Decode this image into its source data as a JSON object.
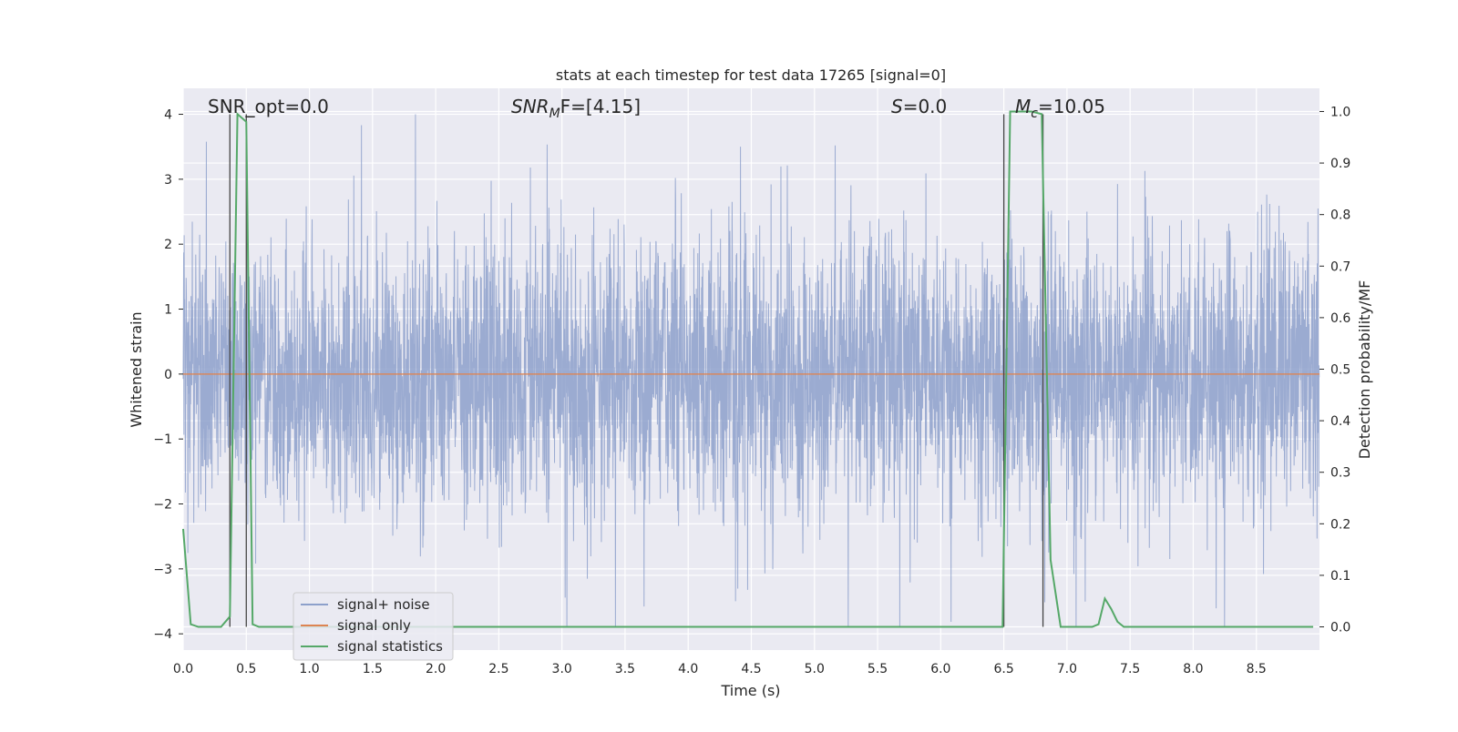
{
  "chart_data": {
    "type": "line",
    "title": "stats at each timestep for test data 17265 [signal=0]",
    "xlabel": "Time (s)",
    "ylabel_left": "Whitened strain",
    "ylabel_right": "Detection probability/MF",
    "xlim": [
      0.0,
      9.0
    ],
    "ylim_left": [
      -4.25,
      4.4
    ],
    "ylim_right": [
      -0.045,
      1.045
    ],
    "x_ticks": [
      "0.0",
      "0.5",
      "1.0",
      "1.5",
      "2.0",
      "2.5",
      "3.0",
      "3.5",
      "4.0",
      "4.5",
      "5.0",
      "5.5",
      "6.0",
      "6.5",
      "7.0",
      "7.5",
      "8.0",
      "8.5"
    ],
    "y_ticks_left": [
      "−4",
      "−3",
      "−2",
      "−1",
      "0",
      "1",
      "2",
      "3",
      "4"
    ],
    "y_ticks_right": [
      "0.0",
      "0.1",
      "0.2",
      "0.3",
      "0.4",
      "0.5",
      "0.6",
      "0.7",
      "0.8",
      "0.9",
      "1.0"
    ],
    "grid": true,
    "legend_position": "lower-left",
    "annotations": {
      "snr_opt": "SNR_opt=0.0",
      "snr_mf_italic": "SNR",
      "snr_mf_sub": "M",
      "snr_mf_rest": "F=[4.15]",
      "s_italic": "S",
      "s_rest": "=0.0",
      "mc_italic": "M",
      "mc_sub": "c",
      "mc_rest": "=10.05"
    },
    "vertical_markers": [
      0.37,
      0.5,
      6.5,
      6.81
    ],
    "series": [
      {
        "name": "signal+ noise",
        "axis": "left",
        "color": "#8da0cb",
        "sample_rate": 512,
        "description_range": [
          -3.9,
          4.0
        ]
      },
      {
        "name": "signal only",
        "axis": "left",
        "color": "#dd8452",
        "x": [
          0.0,
          9.0
        ],
        "y": [
          0.0,
          0.0
        ]
      },
      {
        "name": "signal statistics",
        "axis": "right",
        "color": "#55a868",
        "x": [
          0.0,
          0.06,
          0.12,
          0.3,
          0.37,
          0.43,
          0.5,
          0.55,
          0.6,
          1.0,
          2.0,
          3.0,
          4.0,
          5.0,
          6.0,
          6.49,
          6.55,
          6.6,
          6.72,
          6.8,
          6.87,
          6.95,
          7.2,
          7.25,
          7.3,
          7.35,
          7.4,
          7.45,
          7.5,
          8.0,
          8.5,
          8.95
        ],
        "y": [
          0.19,
          0.005,
          0.0,
          0.0,
          0.02,
          0.995,
          0.98,
          0.005,
          0.0,
          0.0,
          0.0,
          0.0,
          0.0,
          0.0,
          0.0,
          0.0,
          1.0,
          1.0,
          1.0,
          0.995,
          0.13,
          0.0,
          0.0,
          0.005,
          0.055,
          0.035,
          0.01,
          0.0,
          0.0,
          0.0,
          0.0,
          0.0
        ]
      }
    ]
  }
}
